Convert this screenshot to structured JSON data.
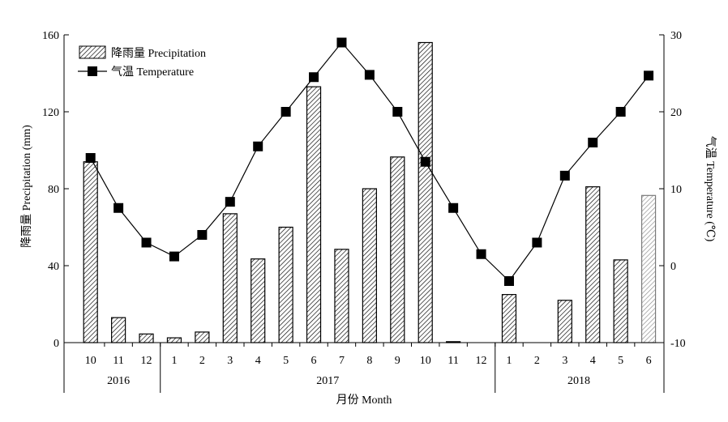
{
  "chart_data": {
    "type": "bar+line",
    "months": [
      "10",
      "11",
      "12",
      "1",
      "2",
      "3",
      "4",
      "5",
      "6",
      "7",
      "8",
      "9",
      "10",
      "11",
      "12",
      "1",
      "2",
      "3",
      "4",
      "5",
      "6"
    ],
    "years": [
      {
        "label": "2016",
        "span": [
          0,
          2
        ]
      },
      {
        "label": "2017",
        "span": [
          3,
          14
        ]
      },
      {
        "label": "2018",
        "span": [
          15,
          20
        ]
      }
    ],
    "xlabel": "月份 Month",
    "series": [
      {
        "name": "降雨量 Precipitation",
        "kind": "bar",
        "axis": "left",
        "values": [
          94,
          13,
          4.5,
          2.5,
          5.5,
          67,
          43.5,
          60,
          133,
          48.5,
          80,
          96.5,
          156,
          0.5,
          0,
          25,
          0,
          22,
          81,
          43,
          76.5
        ]
      },
      {
        "name": "气温 Temperature",
        "kind": "line",
        "axis": "right",
        "values": [
          14,
          7.5,
          3,
          1.2,
          4,
          8.3,
          15.5,
          20,
          24.5,
          29,
          24.8,
          20,
          13.5,
          7.5,
          1.5,
          -2,
          3,
          11.7,
          16,
          20,
          24.7
        ]
      }
    ],
    "y_left": {
      "label": "降雨量 Precipitation (mm)",
      "min": 0,
      "max": 160,
      "ticks": [
        0,
        40,
        80,
        120,
        160
      ]
    },
    "y_right": {
      "label": "气温 Temperature (℃)",
      "min": -10,
      "max": 30,
      "ticks": [
        -10,
        0,
        10,
        20,
        30
      ]
    },
    "legend": {
      "position": "top-left"
    },
    "grid": false
  }
}
